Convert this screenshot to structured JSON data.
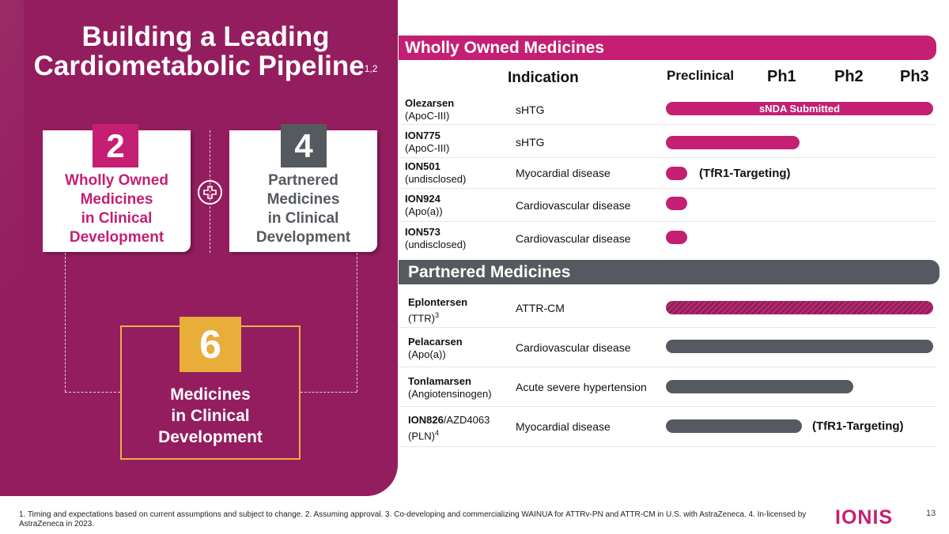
{
  "title": "Building a Leading Cardiometabolic Pipeline",
  "title_line1": "Building a Leading",
  "title_line2": "Cardiometabolic Pipeline",
  "title_sup": "1,2",
  "summary": {
    "wholly_owned": {
      "count": "2",
      "line1": "Wholly Owned",
      "line2": "Medicines",
      "line3": "in Clinical",
      "line4": "Development"
    },
    "partnered": {
      "count": "4",
      "line1": "Partnered",
      "line2": "Medicines",
      "line3": "in Clinical",
      "line4": "Development"
    },
    "total": {
      "count": "6",
      "line1": "Medicines",
      "line2": "in Clinical",
      "line3": "Development"
    }
  },
  "columns": {
    "indication": "Indication",
    "preclinical": "Preclinical",
    "ph1": "Ph1",
    "ph2": "Ph2",
    "ph3": "Ph3"
  },
  "sections": {
    "wholly_owned": "Wholly Owned Medicines",
    "partnered": "Partnered Medicines"
  },
  "wholly_owned_rows": [
    {
      "name": "Olezarsen",
      "target": "(ApoC-III)",
      "indication": "sHTG",
      "phase_progress": 1.0,
      "bar_label": "sNDA Submitted",
      "note": ""
    },
    {
      "name": "ION775",
      "target": "(ApoC-III)",
      "indication": "sHTG",
      "phase_progress": 0.5,
      "bar_label": "",
      "note": ""
    },
    {
      "name": "ION501",
      "target": "(undisclosed)",
      "indication": "Myocardial disease",
      "phase_progress": 0.08,
      "bar_label": "",
      "note": "(TfR1-Targeting)"
    },
    {
      "name": "ION924",
      "target": "(Apo(a))",
      "indication": "Cardiovascular disease",
      "phase_progress": 0.08,
      "bar_label": "",
      "note": ""
    },
    {
      "name": "ION573",
      "target": "(undisclosed)",
      "indication": "Cardiovascular disease",
      "phase_progress": 0.08,
      "bar_label": "",
      "note": ""
    }
  ],
  "partnered_rows": [
    {
      "name": "Eplontersen",
      "target": "(TTR)",
      "target_sup": "3",
      "indication": "ATTR-CM",
      "phase_progress": 1.0,
      "style": "hatched",
      "note": ""
    },
    {
      "name": "Pelacarsen",
      "target": "(Apo(a))",
      "target_sup": "",
      "indication": "Cardiovascular disease",
      "phase_progress": 1.0,
      "style": "solid",
      "note": ""
    },
    {
      "name": "Tonlamarsen",
      "target": "(Angiotensinogen)",
      "target_sup": "",
      "indication": "Acute severe hypertension",
      "phase_progress": 0.7,
      "style": "solid",
      "note": ""
    },
    {
      "name": "ION826",
      "name_suffix": "/AZD4063",
      "target": "(PLN)",
      "target_sup": "4",
      "indication": "Myocardial disease",
      "phase_progress": 0.51,
      "style": "solid",
      "note": "(TfR1-Targeting)"
    }
  ],
  "footnote": "1. Timing and expectations based on current assumptions and subject to change. 2. Assuming approval. 3. Co-developing and commercializing WAINUA for ATTRv-PN and ATTR-CM in U.S. with AstraZeneca. 4. In-licensed by AstraZeneca in 2023.",
  "logo": "IONIS",
  "page_number": "13",
  "colors": {
    "magenta": "#c41f73",
    "plum": "#941d5f",
    "grey": "#555a60",
    "gold": "#e9ad3a"
  }
}
